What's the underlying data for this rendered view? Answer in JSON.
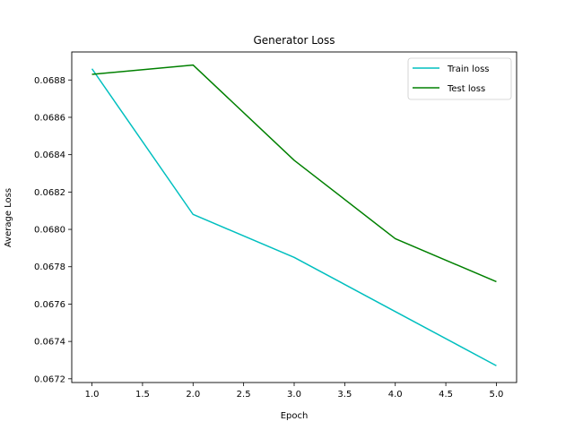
{
  "chart_data": {
    "type": "line",
    "title": "Generator Loss",
    "xlabel": "Epoch",
    "ylabel": "Average Loss",
    "xlim": [
      0.8,
      5.2
    ],
    "ylim": [
      0.06718,
      0.06895
    ],
    "xticks": [
      1.0,
      1.5,
      2.0,
      2.5,
      3.0,
      3.5,
      4.0,
      4.5,
      5.0
    ],
    "xtick_labels": [
      "1.0",
      "1.5",
      "2.0",
      "2.5",
      "3.0",
      "3.5",
      "4.0",
      "4.5",
      "5.0"
    ],
    "yticks": [
      0.0672,
      0.0674,
      0.0676,
      0.0678,
      0.068,
      0.0682,
      0.0684,
      0.0686,
      0.0688
    ],
    "ytick_labels": [
      "0.0672",
      "0.0674",
      "0.0676",
      "0.0678",
      "0.0680",
      "0.0682",
      "0.0684",
      "0.0686",
      "0.0688"
    ],
    "grid": false,
    "legend_position": "top-right",
    "x": [
      1,
      2,
      3,
      4,
      5
    ],
    "series": [
      {
        "name": "Train loss",
        "color": "#00bfbf",
        "values": [
          0.06886,
          0.06808,
          0.06785,
          0.06756,
          0.06727
        ]
      },
      {
        "name": "Test loss",
        "color": "#008000",
        "values": [
          0.06883,
          0.06888,
          0.06837,
          0.06795,
          0.06772
        ]
      }
    ]
  }
}
